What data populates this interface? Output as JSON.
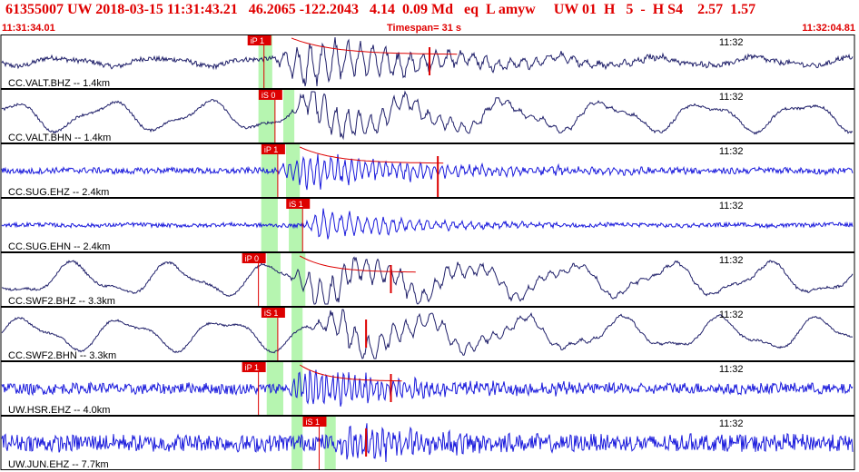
{
  "header": {
    "title": "61355007 UW 2018-03-15 11:31:43.21   46.2065 -122.2043   4.14  0.09 Md   eq  L amyw     UW 01  H   5  -  H S4    2.57  1.57",
    "start_time": "11:31:34.01",
    "timespan": "Timespan=  31 s",
    "end_time": "11:32:04.81"
  },
  "colors": {
    "header_text": "#e00000",
    "pick": "#dd0000",
    "window": "#b6f5b0",
    "trace_dark": "#20206a",
    "trace_blue": "#1a1adc"
  },
  "chart_data": {
    "type": "line",
    "x_range": [
      0,
      30.8
    ],
    "time_marker": {
      "label": "11:32",
      "t": 25.99
    },
    "channels": [
      {
        "label": "CC.VALT.BHZ -- 1.4km",
        "color": "#20206a",
        "noise": 0.1,
        "lf": 0.15,
        "amp": 0.85,
        "freq": 2.2,
        "onset": 9.8,
        "peak": 11.0,
        "decay": 5,
        "picks": [
          {
            "label": "iP 1",
            "t": 9.5,
            "full": false
          },
          {
            "label": "",
            "t": 15.5,
            "full": false
          }
        ],
        "windows": [
          [
            9.3,
            9.8
          ]
        ],
        "coda": [
          10.5,
          16.5
        ]
      },
      {
        "label": "CC.VALT.BHN -- 1.4km",
        "color": "#20206a",
        "noise": 0.05,
        "lf": 0.5,
        "amp": 0.7,
        "freq": 2.4,
        "onset": 10.4,
        "peak": 11.4,
        "decay": 4,
        "picks": [
          {
            "label": "iS 0",
            "t": 9.9,
            "full": false
          }
        ],
        "windows": [
          [
            9.3,
            9.9
          ],
          [
            10.2,
            10.6
          ]
        ],
        "coda": null
      },
      {
        "label": "CC.SUG.EHZ -- 2.4km",
        "color": "#1a1adc",
        "noise": 0.12,
        "lf": 0.02,
        "amp": 0.6,
        "freq": 4.0,
        "onset": 10.0,
        "peak": 10.8,
        "decay": 5,
        "picks": [
          {
            "label": "iP 1",
            "t": 10.0,
            "full": false
          },
          {
            "label": "",
            "t": 15.8,
            "full": true
          }
        ],
        "windows": [
          [
            9.4,
            10.0
          ],
          [
            10.3,
            10.8
          ]
        ],
        "coda": [
          10.8,
          16.0
        ]
      },
      {
        "label": "CC.SUG.EHN -- 2.4km",
        "color": "#1a1adc",
        "noise": 0.08,
        "lf": 0.02,
        "amp": 0.5,
        "freq": 3.2,
        "onset": 10.9,
        "peak": 11.6,
        "decay": 3.5,
        "picks": [
          {
            "label": "iS 1",
            "t": 10.9,
            "full": false
          }
        ],
        "windows": [
          [
            9.4,
            10.0
          ],
          [
            10.4,
            10.9
          ]
        ],
        "coda": null
      },
      {
        "label": "CC.SWF2.BHZ -- 3.3km",
        "color": "#20206a",
        "noise": 0.05,
        "lf": 0.55,
        "amp": 0.65,
        "freq": 2.4,
        "onset": 10.2,
        "peak": 11.6,
        "decay": 5,
        "picks": [
          {
            "label": "iP 0",
            "t": 9.3,
            "full": false
          },
          {
            "label": "",
            "t": 14.1,
            "full": false
          }
        ],
        "windows": [
          [
            9.6,
            10.1
          ],
          [
            10.5,
            11.0
          ]
        ],
        "coda": [
          10.8,
          15.0
        ]
      },
      {
        "label": "CC.SWF2.BHN -- 3.3km",
        "color": "#20206a",
        "noise": 0.04,
        "lf": 0.55,
        "amp": 0.6,
        "freq": 2.2,
        "onset": 11.0,
        "peak": 12.5,
        "decay": 4,
        "picks": [
          {
            "label": "iS 1",
            "t": 10.0,
            "full": false
          },
          {
            "label": "",
            "t": 13.2,
            "full": false
          }
        ],
        "windows": [
          [
            9.6,
            10.0
          ],
          [
            10.5,
            10.9
          ]
        ],
        "coda": null
      },
      {
        "label": "UW.HSR.EHZ -- 4.0km",
        "color": "#1a1adc",
        "noise": 0.22,
        "lf": 0.03,
        "amp": 0.7,
        "freq": 5.0,
        "onset": 10.3,
        "peak": 11.0,
        "decay": 4,
        "picks": [
          {
            "label": "iP 1",
            "t": 9.3,
            "full": false
          },
          {
            "label": "",
            "t": 14.1,
            "full": false
          }
        ],
        "windows": [
          [
            9.6,
            10.2
          ],
          [
            10.5,
            10.9
          ]
        ],
        "coda": [
          10.8,
          14.5
        ]
      },
      {
        "label": "UW.JUN.EHZ -- 7.7km",
        "color": "#1a1adc",
        "noise": 0.35,
        "lf": 0.03,
        "amp": 0.6,
        "freq": 5.0,
        "onset": 12.0,
        "peak": 12.7,
        "decay": 3,
        "picks": [
          {
            "label": "iS 1",
            "t": 11.5,
            "full": false
          },
          {
            "label": "",
            "t": 13.2,
            "full": false
          }
        ],
        "windows": [
          [
            10.5,
            10.9
          ],
          [
            11.7,
            12.1
          ]
        ],
        "coda": null
      }
    ]
  }
}
